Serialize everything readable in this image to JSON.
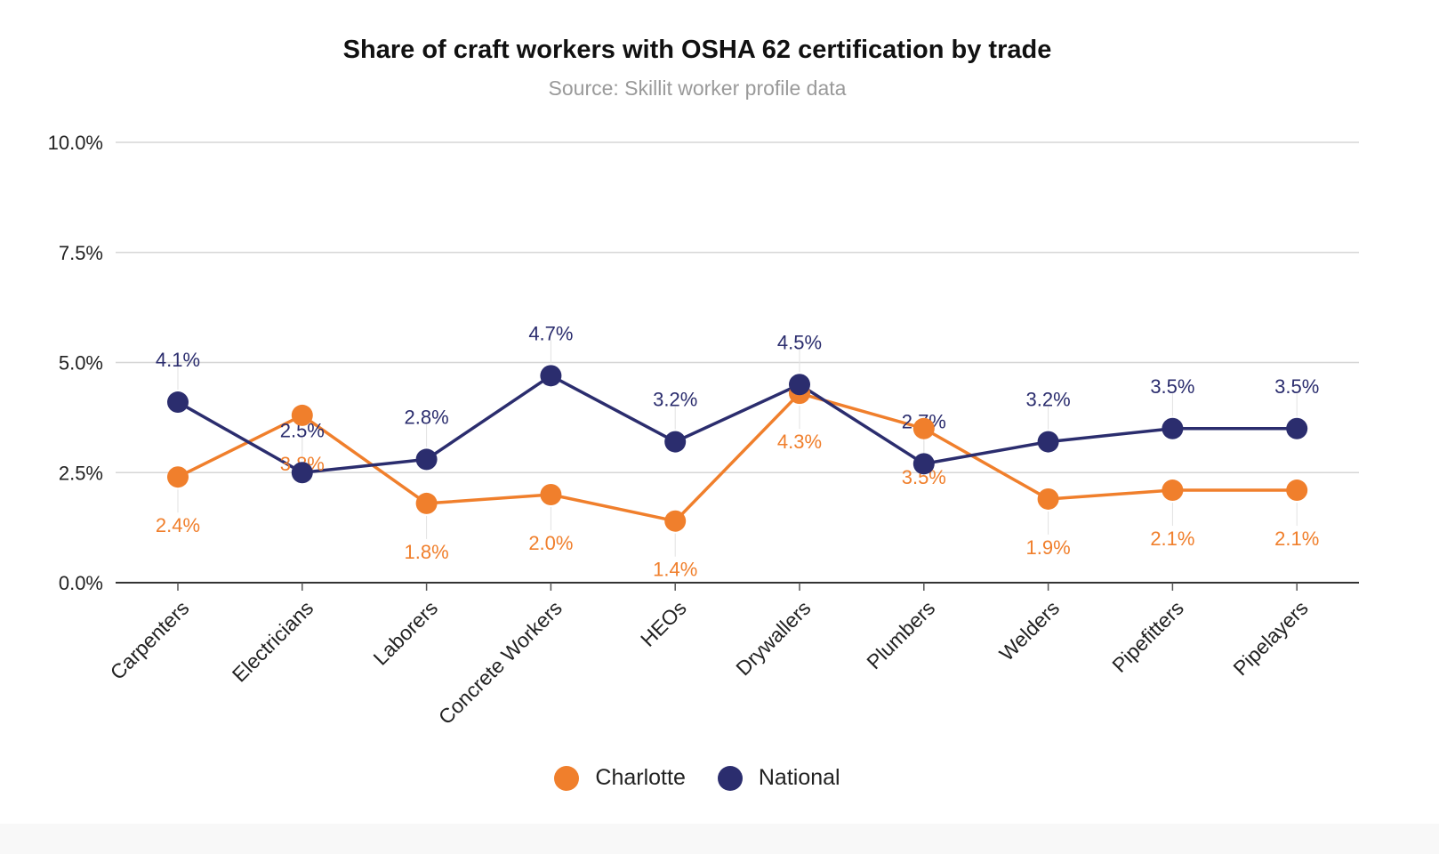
{
  "chart_data": {
    "type": "line",
    "title": "Share of craft workers with OSHA 62 certification by trade",
    "subtitle": "Source: Skillit worker profile data",
    "categories": [
      "Carpenters",
      "Electricians",
      "Laborers",
      "Concrete Workers",
      "HEOs",
      "Drywallers",
      "Plumbers",
      "Welders",
      "Pipefitters",
      "Pipelayers"
    ],
    "series": [
      {
        "name": "Charlotte",
        "color": "#f07f2c",
        "values": [
          2.4,
          3.8,
          1.8,
          2.0,
          1.4,
          4.3,
          3.5,
          1.9,
          2.1,
          2.1
        ],
        "labels": [
          "2.4%",
          "3.8%",
          "1.8%",
          "2.0%",
          "1.4%",
          "4.3%",
          "3.5%",
          "1.9%",
          "2.1%",
          "2.1%"
        ],
        "label_position": [
          "below",
          "below",
          "below",
          "below",
          "below",
          "below",
          "below",
          "below",
          "below",
          "below"
        ]
      },
      {
        "name": "National",
        "color": "#2b2d6e",
        "values": [
          4.1,
          2.5,
          2.8,
          4.7,
          3.2,
          4.5,
          2.7,
          3.2,
          3.5,
          3.5
        ],
        "labels": [
          "4.1%",
          "2.5%",
          "2.8%",
          "4.7%",
          "3.2%",
          "4.5%",
          "2.7%",
          "3.2%",
          "3.5%",
          "3.5%"
        ],
        "label_position": [
          "above",
          "above",
          "above",
          "above",
          "above",
          "above",
          "above",
          "above",
          "above",
          "above"
        ]
      }
    ],
    "yticks": [
      0,
      2.5,
      5.0,
      7.5,
      10.0
    ],
    "ytick_labels": [
      "0.0%",
      "2.5%",
      "5.0%",
      "7.5%",
      "10.0%"
    ],
    "ylim": [
      0,
      10
    ],
    "xlabel": "",
    "ylabel": "",
    "grid": true,
    "legend": "bottom-center"
  }
}
